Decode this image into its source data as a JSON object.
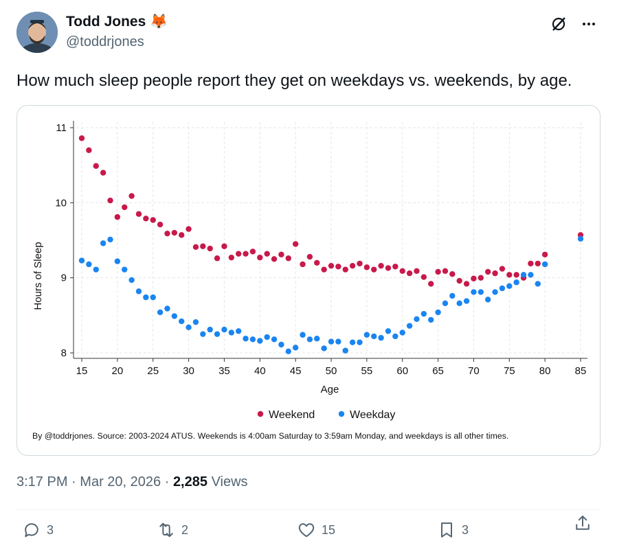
{
  "tweet": {
    "author_name": "Todd Jones",
    "author_emoji": "🦊",
    "handle": "@toddrjones",
    "text": "How much sleep people report they get on weekdays vs. weekends, by age.",
    "time": "3:17 PM",
    "date": "Mar 20, 2026",
    "separator": "·",
    "views_count": "2,285",
    "views_label": "Views"
  },
  "actions": {
    "replies": "3",
    "reposts": "2",
    "likes": "15",
    "bookmarks": "3"
  },
  "icons": {
    "top": [
      "grok-icon",
      "more-icon"
    ],
    "actions": [
      "reply-icon",
      "repost-icon",
      "like-icon",
      "bookmark-icon",
      "share-icon"
    ]
  },
  "colors": {
    "weekend": "#c8194b",
    "weekday": "#1a85f0",
    "text_secondary": "#536471"
  },
  "chart_data": {
    "type": "scatter",
    "title": "",
    "xlabel": "Age",
    "ylabel": "Hours of Sleep",
    "xlim": [
      15,
      85
    ],
    "ylim": [
      8,
      11
    ],
    "x_ticks": [
      15,
      20,
      25,
      30,
      35,
      40,
      45,
      50,
      55,
      60,
      65,
      70,
      75,
      80,
      85
    ],
    "y_ticks": [
      8,
      9,
      10,
      11
    ],
    "grid": true,
    "legend": "bottom",
    "note": "By @toddrjones. Source: 2003-2024 ATUS. Weekends is 4:00am Saturday to 3:59am Monday, and weekdays is all other times.",
    "series": [
      {
        "name": "Weekend",
        "x": [
          15,
          16,
          17,
          18,
          19,
          20,
          21,
          22,
          23,
          24,
          25,
          26,
          27,
          28,
          29,
          30,
          31,
          32,
          33,
          34,
          35,
          36,
          37,
          38,
          39,
          40,
          41,
          42,
          43,
          44,
          45,
          46,
          47,
          48,
          49,
          50,
          51,
          52,
          53,
          54,
          55,
          56,
          57,
          58,
          59,
          60,
          61,
          62,
          63,
          64,
          65,
          66,
          67,
          68,
          69,
          70,
          71,
          72,
          73,
          74,
          75,
          76,
          77,
          78,
          79,
          80,
          85
        ],
        "y": [
          10.86,
          10.7,
          10.49,
          10.4,
          10.03,
          9.81,
          9.94,
          10.09,
          9.85,
          9.79,
          9.77,
          9.71,
          9.59,
          9.6,
          9.57,
          9.65,
          9.41,
          9.42,
          9.39,
          9.26,
          9.42,
          9.27,
          9.32,
          9.32,
          9.35,
          9.27,
          9.32,
          9.25,
          9.31,
          9.26,
          9.45,
          9.18,
          9.28,
          9.2,
          9.11,
          9.16,
          9.15,
          9.11,
          9.16,
          9.19,
          9.14,
          9.11,
          9.16,
          9.13,
          9.15,
          9.09,
          9.06,
          9.09,
          9.01,
          8.92,
          9.08,
          9.09,
          9.05,
          8.96,
          8.92,
          8.99,
          9.0,
          9.08,
          9.06,
          9.12,
          9.04,
          9.04,
          9.0,
          9.19,
          9.19,
          9.31,
          9.57
        ]
      },
      {
        "name": "Weekday",
        "x": [
          15,
          16,
          17,
          18,
          19,
          20,
          21,
          22,
          23,
          24,
          25,
          26,
          27,
          28,
          29,
          30,
          31,
          32,
          33,
          34,
          35,
          36,
          37,
          38,
          39,
          40,
          41,
          42,
          43,
          44,
          45,
          46,
          47,
          48,
          49,
          50,
          51,
          52,
          53,
          54,
          55,
          56,
          57,
          58,
          59,
          60,
          61,
          62,
          63,
          64,
          65,
          66,
          67,
          68,
          69,
          70,
          71,
          72,
          73,
          74,
          75,
          76,
          77,
          78,
          79,
          80,
          85
        ],
        "y": [
          9.23,
          9.18,
          9.11,
          9.46,
          9.51,
          9.22,
          9.11,
          8.97,
          8.82,
          8.74,
          8.74,
          8.54,
          8.59,
          8.49,
          8.42,
          8.34,
          8.41,
          8.25,
          8.31,
          8.25,
          8.31,
          8.27,
          8.29,
          8.19,
          8.18,
          8.16,
          8.21,
          8.18,
          8.11,
          8.02,
          8.07,
          8.24,
          8.18,
          8.19,
          8.06,
          8.15,
          8.15,
          8.03,
          8.14,
          8.14,
          8.24,
          8.22,
          8.2,
          8.29,
          8.22,
          8.27,
          8.36,
          8.45,
          8.52,
          8.44,
          8.54,
          8.66,
          8.76,
          8.66,
          8.69,
          8.81,
          8.81,
          8.71,
          8.81,
          8.86,
          8.89,
          8.94,
          9.04,
          9.04,
          8.92,
          9.18,
          9.52
        ]
      }
    ]
  }
}
